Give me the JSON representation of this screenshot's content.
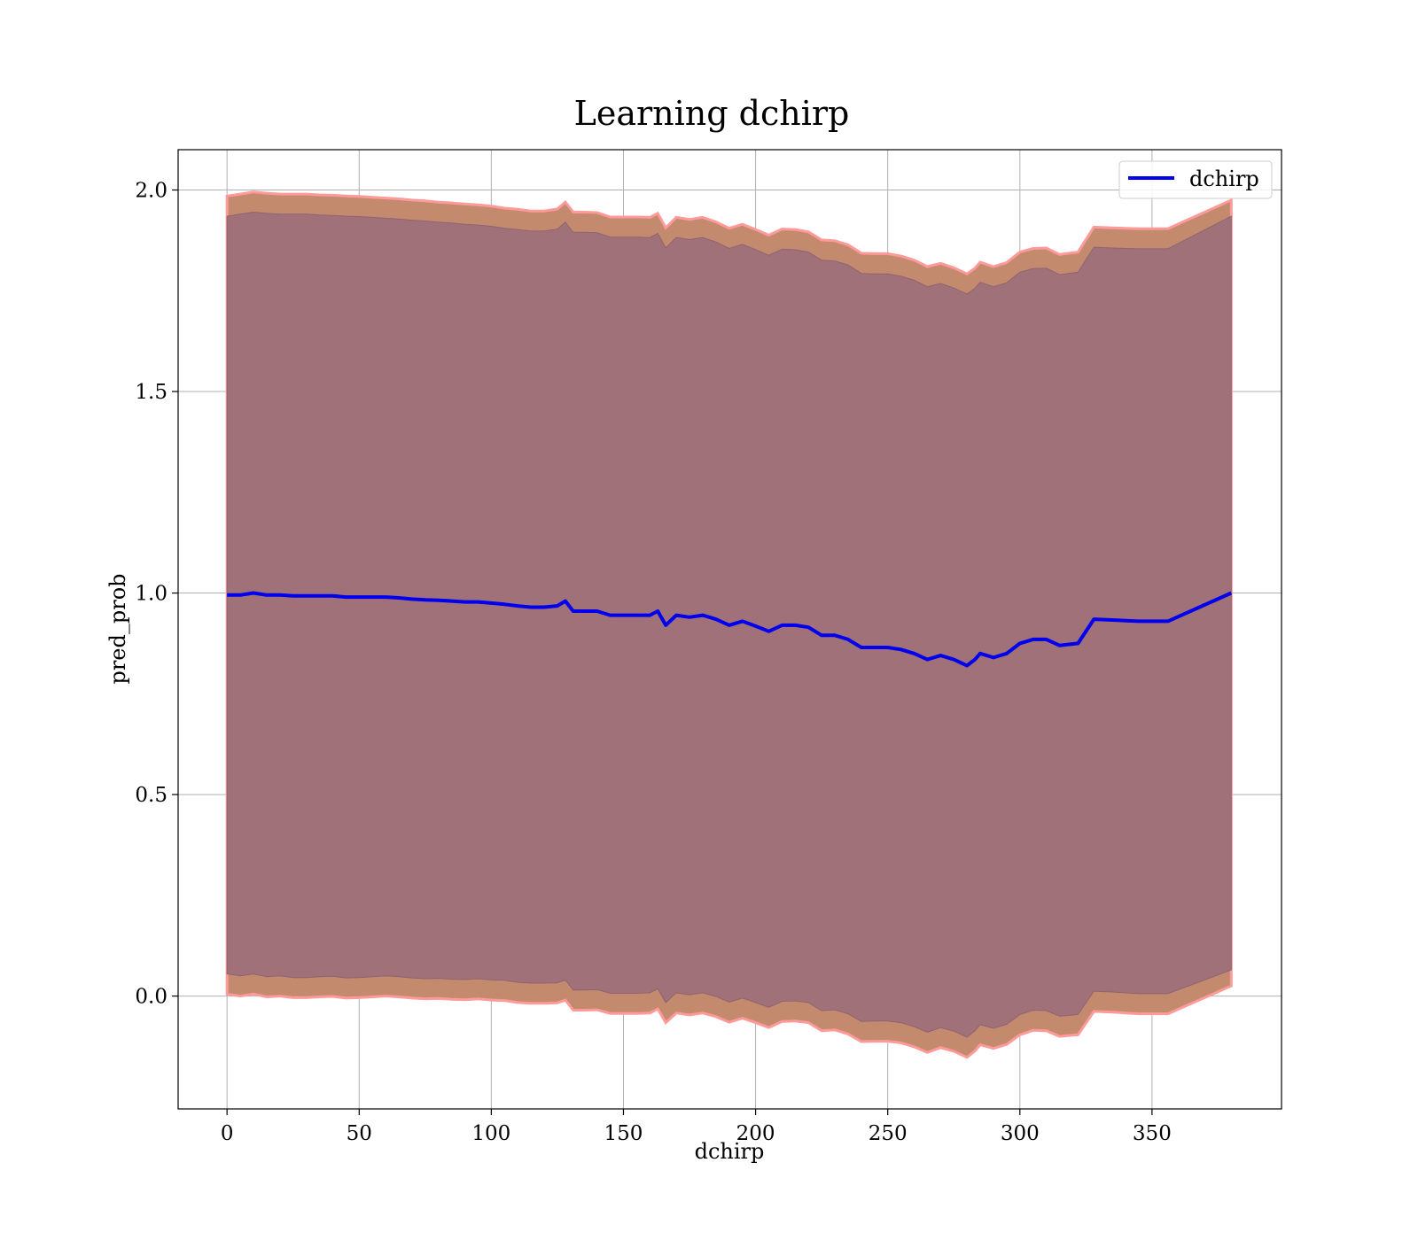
{
  "chart_data": {
    "type": "line",
    "title": "Learning dchirp",
    "xlabel": "dchirp",
    "ylabel": "pred_prob",
    "xlim": [
      -18.5,
      399
    ],
    "ylim": [
      -0.28,
      2.1
    ],
    "xticks": [
      0,
      50,
      100,
      150,
      200,
      250,
      300,
      350
    ],
    "yticks": [
      0.0,
      0.5,
      1.0,
      1.5,
      2.0
    ],
    "xtick_labels": [
      "0",
      "50",
      "100",
      "150",
      "200",
      "250",
      "300",
      "350"
    ],
    "ytick_labels": [
      "0.0",
      "0.5",
      "1.0",
      "1.5",
      "2.0"
    ],
    "grid": true,
    "legend": {
      "position": "top-right",
      "entries": [
        "dchirp"
      ]
    },
    "colors": {
      "line": "#0000ee",
      "outer_band": "#c48a6e",
      "outer_band_edge": "#ff9a9a",
      "inner_band": "#a1717a"
    },
    "x": [
      0,
      5,
      10,
      15,
      20,
      25,
      30,
      35,
      40,
      45,
      50,
      55,
      60,
      65,
      70,
      75,
      80,
      85,
      90,
      95,
      100,
      105,
      110,
      115,
      120,
      125,
      128,
      131,
      135,
      140,
      145,
      150,
      155,
      160,
      163,
      166,
      170,
      175,
      180,
      185,
      190,
      195,
      200,
      205,
      210,
      215,
      220,
      225,
      230,
      235,
      240,
      245,
      250,
      255,
      260,
      265,
      270,
      275,
      280,
      283,
      285,
      290,
      295,
      300,
      305,
      310,
      315,
      322,
      328,
      335,
      345,
      356,
      380
    ],
    "series": [
      {
        "name": "dchirp",
        "values": [
          0.995,
          0.995,
          1.0,
          0.995,
          0.995,
          0.993,
          0.993,
          0.993,
          0.993,
          0.99,
          0.99,
          0.99,
          0.99,
          0.988,
          0.985,
          0.983,
          0.982,
          0.98,
          0.978,
          0.978,
          0.975,
          0.972,
          0.968,
          0.965,
          0.965,
          0.968,
          0.98,
          0.955,
          0.955,
          0.955,
          0.945,
          0.945,
          0.945,
          0.945,
          0.955,
          0.92,
          0.945,
          0.94,
          0.945,
          0.935,
          0.92,
          0.93,
          0.918,
          0.905,
          0.92,
          0.92,
          0.915,
          0.895,
          0.895,
          0.885,
          0.865,
          0.865,
          0.865,
          0.86,
          0.85,
          0.835,
          0.845,
          0.835,
          0.82,
          0.835,
          0.85,
          0.84,
          0.85,
          0.875,
          0.885,
          0.885,
          0.87,
          0.875,
          0.935,
          0.933,
          0.93,
          0.93,
          1.0
        ]
      }
    ],
    "bands": [
      {
        "role": "outer",
        "upper": [
          1.985,
          1.99,
          1.995,
          1.992,
          1.99,
          1.99,
          1.99,
          1.988,
          1.987,
          1.985,
          1.984,
          1.982,
          1.98,
          1.978,
          1.975,
          1.973,
          1.97,
          1.968,
          1.965,
          1.963,
          1.96,
          1.955,
          1.952,
          1.948,
          1.948,
          1.953,
          1.97,
          1.945,
          1.945,
          1.944,
          1.933,
          1.933,
          1.933,
          1.932,
          1.942,
          1.906,
          1.932,
          1.927,
          1.932,
          1.921,
          1.905,
          1.915,
          1.902,
          1.888,
          1.903,
          1.902,
          1.896,
          1.876,
          1.874,
          1.864,
          1.843,
          1.842,
          1.842,
          1.836,
          1.826,
          1.81,
          1.818,
          1.807,
          1.792,
          1.806,
          1.821,
          1.81,
          1.82,
          1.846,
          1.855,
          1.856,
          1.84,
          1.846,
          1.908,
          1.906,
          1.904,
          1.904,
          1.975
        ],
        "lower": [
          0.005,
          0.0,
          0.005,
          -0.002,
          0.0,
          -0.004,
          -0.004,
          -0.002,
          -0.001,
          -0.005,
          -0.004,
          -0.002,
          0.0,
          -0.002,
          -0.005,
          -0.007,
          -0.006,
          -0.008,
          -0.009,
          -0.007,
          -0.01,
          -0.011,
          -0.016,
          -0.018,
          -0.018,
          -0.017,
          -0.01,
          -0.035,
          -0.035,
          -0.034,
          -0.043,
          -0.043,
          -0.043,
          -0.042,
          -0.032,
          -0.066,
          -0.042,
          -0.047,
          -0.042,
          -0.051,
          -0.065,
          -0.055,
          -0.066,
          -0.078,
          -0.063,
          -0.062,
          -0.066,
          -0.086,
          -0.084,
          -0.094,
          -0.113,
          -0.112,
          -0.112,
          -0.116,
          -0.126,
          -0.14,
          -0.128,
          -0.137,
          -0.152,
          -0.136,
          -0.121,
          -0.13,
          -0.12,
          -0.096,
          -0.085,
          -0.086,
          -0.1,
          -0.096,
          -0.038,
          -0.04,
          -0.044,
          -0.044,
          0.025
        ]
      },
      {
        "role": "inner",
        "upper": [
          1.935,
          1.94,
          1.945,
          1.942,
          1.94,
          1.94,
          1.94,
          1.938,
          1.937,
          1.935,
          1.934,
          1.932,
          1.93,
          1.928,
          1.925,
          1.923,
          1.92,
          1.918,
          1.915,
          1.913,
          1.91,
          1.905,
          1.902,
          1.898,
          1.898,
          1.903,
          1.92,
          1.895,
          1.895,
          1.894,
          1.883,
          1.883,
          1.883,
          1.882,
          1.892,
          1.856,
          1.882,
          1.877,
          1.882,
          1.871,
          1.855,
          1.865,
          1.852,
          1.838,
          1.853,
          1.852,
          1.846,
          1.826,
          1.824,
          1.814,
          1.793,
          1.792,
          1.792,
          1.786,
          1.776,
          1.76,
          1.768,
          1.757,
          1.742,
          1.756,
          1.771,
          1.76,
          1.77,
          1.796,
          1.805,
          1.806,
          1.79,
          1.796,
          1.858,
          1.856,
          1.854,
          1.854,
          1.935
        ],
        "lower": [
          0.055,
          0.05,
          0.055,
          0.048,
          0.05,
          0.046,
          0.046,
          0.048,
          0.049,
          0.045,
          0.046,
          0.048,
          0.05,
          0.048,
          0.045,
          0.043,
          0.044,
          0.042,
          0.041,
          0.043,
          0.04,
          0.039,
          0.034,
          0.032,
          0.032,
          0.033,
          0.04,
          0.015,
          0.015,
          0.016,
          0.007,
          0.007,
          0.007,
          0.008,
          0.018,
          -0.016,
          0.008,
          0.003,
          0.008,
          -0.001,
          -0.015,
          -0.005,
          -0.016,
          -0.028,
          -0.013,
          -0.012,
          -0.016,
          -0.036,
          -0.034,
          -0.044,
          -0.063,
          -0.062,
          -0.062,
          -0.066,
          -0.076,
          -0.09,
          -0.078,
          -0.087,
          -0.102,
          -0.086,
          -0.071,
          -0.08,
          -0.07,
          -0.046,
          -0.035,
          -0.036,
          -0.05,
          -0.046,
          0.012,
          0.01,
          0.006,
          0.006,
          0.065
        ]
      }
    ]
  }
}
